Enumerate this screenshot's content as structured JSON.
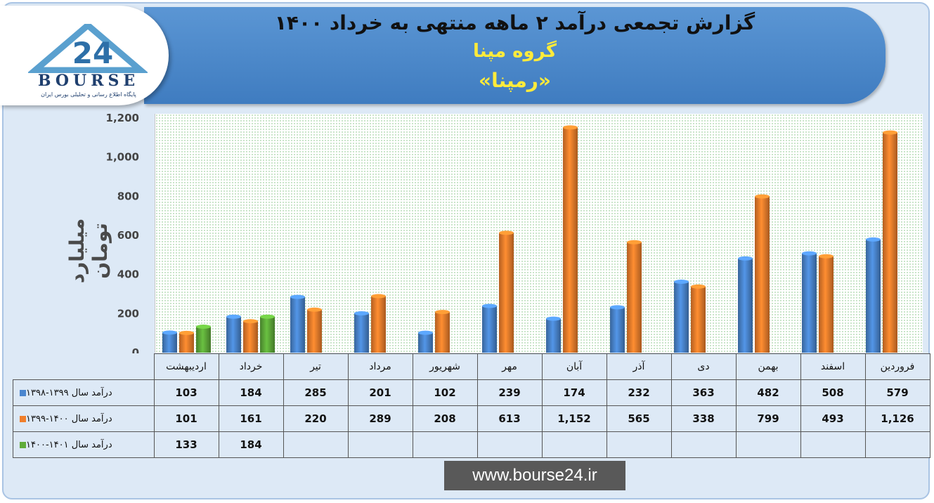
{
  "header": {
    "title": "گزارش تجمعی درآمد ۲ ماهه منتهی به خرداد ۱۴۰۰",
    "subtitle": "گروه مپنا",
    "symbol": "«رمپنا»"
  },
  "logo": {
    "wordmark": "BOURSE",
    "number": "24",
    "tagline": "پایگاه اطلاع رسانی و تحلیلی بورس ایران"
  },
  "footer": {
    "url": "www.bourse24.ir"
  },
  "colors": {
    "blue": "#4a86cf",
    "orange": "#f07f2c",
    "green": "#5fac3a"
  },
  "chart_data": {
    "type": "bar",
    "ylabel": "میلیارد تومان",
    "ylim": [
      0,
      1200
    ],
    "yticks": [
      "0",
      "200",
      "400",
      "600",
      "800",
      "1,000",
      "1,200"
    ],
    "grid": false,
    "categories": [
      "اردیبهشت",
      "خرداد",
      "تیر",
      "مرداد",
      "شهریور",
      "مهر",
      "آبان",
      "آذر",
      "دی",
      "بهمن",
      "اسفند",
      "فروردین"
    ],
    "series": [
      {
        "name": "درآمد سال ۱۳۹۹-۱۳۹۸",
        "color": "#4a86cf",
        "values": [
          103,
          184,
          285,
          201,
          102,
          239,
          174,
          232,
          363,
          482,
          508,
          579
        ],
        "labels": [
          "103",
          "184",
          "285",
          "201",
          "102",
          "239",
          "174",
          "232",
          "363",
          "482",
          "508",
          "579"
        ]
      },
      {
        "name": "درآمد سال ۱۴۰۰-۱۳۹۹",
        "color": "#f07f2c",
        "values": [
          101,
          161,
          220,
          289,
          208,
          613,
          1152,
          565,
          338,
          799,
          493,
          1126
        ],
        "labels": [
          "101",
          "161",
          "220",
          "289",
          "208",
          "613",
          "1,152",
          "565",
          "338",
          "799",
          "493",
          "1,126"
        ]
      },
      {
        "name": "درآمد سال ۱۴۰۱-۱۴۰۰",
        "color": "#5fac3a",
        "values": [
          133,
          184,
          null,
          null,
          null,
          null,
          null,
          null,
          null,
          null,
          null,
          null
        ],
        "labels": [
          "133",
          "184",
          "",
          "",
          "",
          "",
          "",
          "",
          "",
          "",
          "",
          ""
        ]
      }
    ]
  }
}
